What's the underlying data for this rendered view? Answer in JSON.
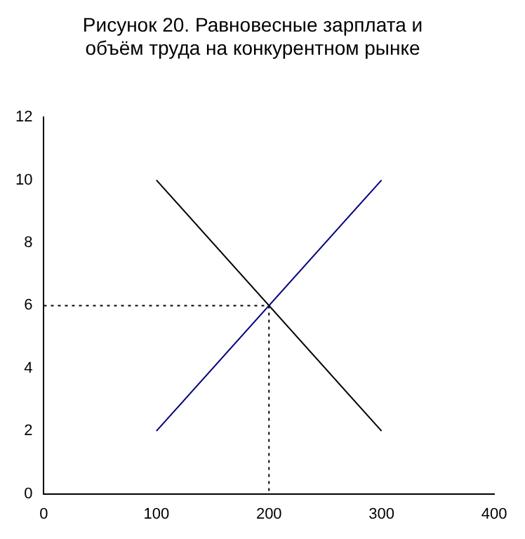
{
  "chart_data": {
    "type": "line",
    "title": "Рисунок 20. Равновесные зарплата и\nобъём труда на конкурентном рынке",
    "xlim": [
      0,
      400
    ],
    "xticks": [
      0,
      100,
      200,
      300,
      400
    ],
    "ylim": [
      0,
      12
    ],
    "yticks": [
      0,
      2,
      4,
      6,
      8,
      10,
      12
    ],
    "grid": false,
    "legend": false,
    "marker": "none",
    "series": [
      {
        "color": "#000000",
        "x": [
          100,
          300
        ],
        "values": [
          10,
          2
        ],
        "line_style": "solid"
      },
      {
        "color": "#000080",
        "x": [
          100,
          300
        ],
        "values": [
          2,
          10
        ],
        "line_style": "solid"
      },
      {
        "color": "#000000",
        "x": [
          0,
          200
        ],
        "values": [
          6,
          6
        ],
        "line_style": "dotted"
      },
      {
        "color": "#000000",
        "x": [
          200,
          200
        ],
        "values": [
          6,
          0
        ],
        "line_style": "dotted"
      }
    ]
  }
}
